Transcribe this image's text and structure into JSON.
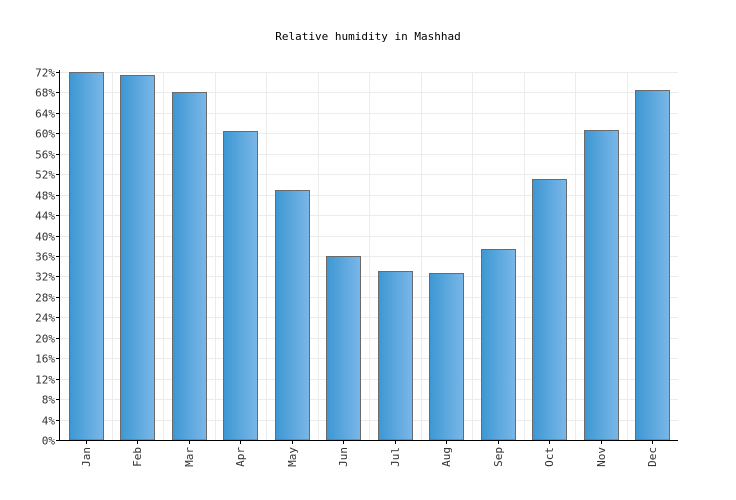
{
  "chart_data": {
    "type": "bar",
    "title": "Relative humidity in Mashhad",
    "xlabel": "",
    "ylabel": "",
    "categories": [
      "Jan",
      "Feb",
      "Mar",
      "Apr",
      "May",
      "Jun",
      "Jul",
      "Aug",
      "Sep",
      "Oct",
      "Nov",
      "Dec"
    ],
    "series": [
      {
        "name": "Relative humidity",
        "values": [
          72,
          71.5,
          68,
          60.5,
          49,
          36,
          33,
          32.7,
          37.3,
          51,
          60.7,
          68.5
        ]
      }
    ],
    "ylim": [
      0,
      72
    ],
    "ytick_step": 4,
    "ytick_suffix": "%",
    "grid": true,
    "colors": {
      "bar_light": "#7ab7e8",
      "bar_dark": "#3d97d3",
      "bar_edge": "#6a6a6a"
    }
  }
}
